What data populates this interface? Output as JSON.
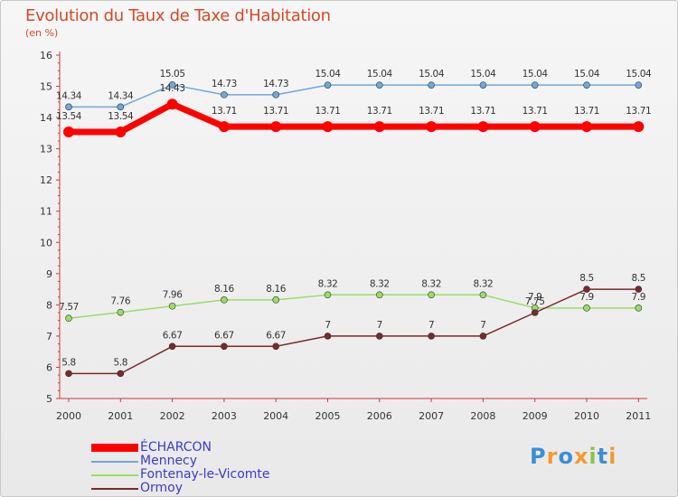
{
  "chart_data": {
    "type": "line",
    "title": "Evolution du Taux de Taxe d'Habitation",
    "unit_label": "(en %)",
    "x": [
      "2000",
      "2001",
      "2002",
      "2003",
      "2004",
      "2005",
      "2006",
      "2007",
      "2008",
      "2009",
      "2010",
      "2011"
    ],
    "ylim": [
      5,
      16
    ],
    "yticks": [
      5,
      6,
      7,
      8,
      9,
      10,
      11,
      12,
      13,
      14,
      15,
      16
    ],
    "grid": false,
    "legend_placement": "bottom-left",
    "series": [
      {
        "name": "ÉCHARCON",
        "color": "#ff0000",
        "highlight": true,
        "values": [
          13.54,
          13.54,
          14.43,
          13.71,
          13.71,
          13.71,
          13.71,
          13.71,
          13.71,
          13.71,
          13.71,
          13.71
        ],
        "labels": [
          "13.54",
          "13.54",
          "14.43",
          "13.71",
          "13.71",
          "13.71",
          "13.71",
          "13.71",
          "13.71",
          "13.71",
          "13.71",
          "13.71"
        ]
      },
      {
        "name": "Mennecy",
        "color": "#6fa8dc",
        "values": [
          14.34,
          14.34,
          15.05,
          14.73,
          14.73,
          15.04,
          15.04,
          15.04,
          15.04,
          15.04,
          15.04,
          15.04
        ],
        "labels": [
          "14.34",
          "14.34",
          "15.05",
          "14.73",
          "14.73",
          "15.04",
          "15.04",
          "15.04",
          "15.04",
          "15.04",
          "15.04",
          "15.04"
        ]
      },
      {
        "name": "Fontenay-le-Vicomte",
        "color": "#99dd66",
        "values": [
          7.57,
          7.76,
          7.96,
          8.16,
          8.16,
          8.32,
          8.32,
          8.32,
          8.32,
          7.9,
          7.9,
          7.9
        ],
        "labels": [
          "7.57",
          "7.76",
          "7.96",
          "8.16",
          "8.16",
          "8.32",
          "8.32",
          "8.32",
          "8.32",
          "7.9",
          "7.9",
          "7.9"
        ]
      },
      {
        "name": "Ormoy",
        "color": "#7a2a2a",
        "values": [
          5.8,
          5.8,
          6.67,
          6.67,
          6.67,
          7,
          7,
          7,
          7,
          7.75,
          8.5,
          8.5
        ],
        "labels": [
          "5.8",
          "5.8",
          "6.67",
          "6.67",
          "6.67",
          "7",
          "7",
          "7",
          "7",
          "7.75",
          "8.5",
          "8.5"
        ]
      }
    ]
  },
  "logo": {
    "text": "Proxiti",
    "colors": [
      "#3b8ed6",
      "#f29a2e",
      "#3b8ed6",
      "#f29a2e",
      "#8cc63f",
      "#3b8ed6",
      "#f29a2e"
    ]
  }
}
